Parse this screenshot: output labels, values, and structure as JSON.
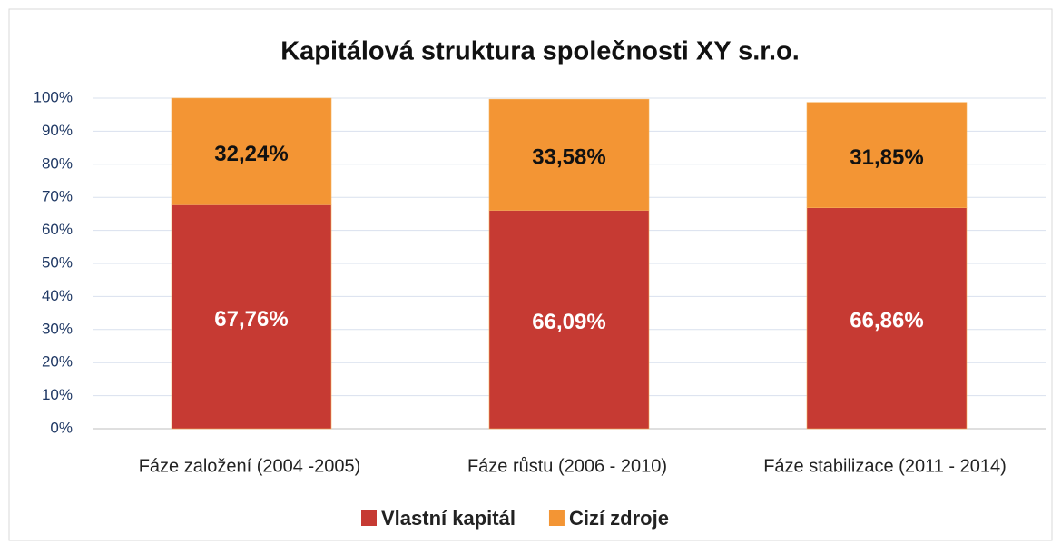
{
  "chart_data": {
    "type": "stacked_bar",
    "title": "Kapitálová struktura společnosti XY s.r.o.",
    "categories": [
      "Fáze založení (2004 -2005)",
      "Fáze růstu (2006 - 2010)",
      "Fáze stabilizace (2011 - 2014)"
    ],
    "series": [
      {
        "name": "Vlastní kapitál",
        "color": "#c63a33",
        "values": [
          67.76,
          66.09,
          66.86
        ],
        "value_labels": [
          "67,76%",
          "66,09%",
          "66,86%"
        ],
        "label_color": "#ffffff"
      },
      {
        "name": "Cizí zdroje",
        "color": "#f39534",
        "values": [
          32.24,
          33.58,
          31.85
        ],
        "value_labels": [
          "32,24%",
          "33,58%",
          "31,85%"
        ],
        "label_color": "#111111"
      }
    ],
    "ylim": [
      0,
      100
    ],
    "yticks": [
      {
        "value": 0,
        "label": "0%"
      },
      {
        "value": 10,
        "label": "10%"
      },
      {
        "value": 20,
        "label": "20%"
      },
      {
        "value": 30,
        "label": "30%"
      },
      {
        "value": 40,
        "label": "40%"
      },
      {
        "value": 50,
        "label": "50%"
      },
      {
        "value": 60,
        "label": "60%"
      },
      {
        "value": 70,
        "label": "70%"
      },
      {
        "value": 80,
        "label": "80%"
      },
      {
        "value": 90,
        "label": "90%"
      },
      {
        "value": 100,
        "label": "100%"
      }
    ],
    "grid": true,
    "legend": "bottom"
  }
}
